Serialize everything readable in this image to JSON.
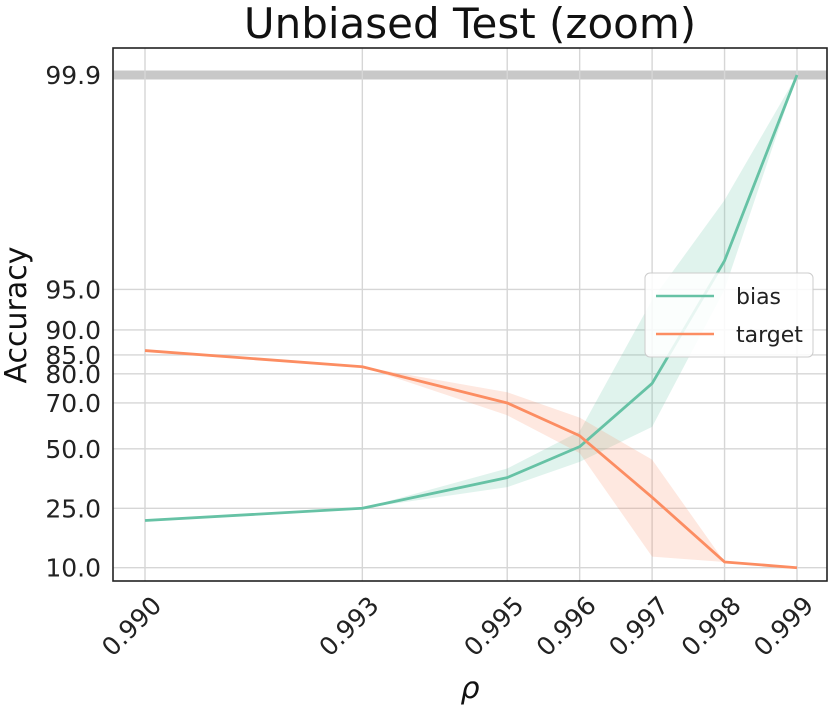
{
  "chart_data": {
    "type": "line",
    "title": "Unbiased Test (zoom)",
    "xlabel": "ρ",
    "ylabel": "Accuracy",
    "x": [
      0.99,
      0.993,
      0.995,
      0.996,
      0.997,
      0.998,
      0.999
    ],
    "x_tick_labels": [
      "0.990",
      "0.993",
      "0.995",
      "0.996",
      "0.997",
      "0.998",
      "0.999"
    ],
    "y_ticks": [
      10.0,
      25.0,
      50.0,
      70.0,
      80.0,
      85.0,
      90.0,
      95.0,
      99.9
    ],
    "y_tick_labels": [
      "10.0",
      "25.0",
      "50.0",
      "70.0",
      "80.0",
      "85.0",
      "90.0",
      "95.0",
      "99.9"
    ],
    "grid": true,
    "legend_position": "center-right",
    "series": [
      {
        "name": "bias",
        "color": "#66c2a5",
        "values": [
          21.0,
          25.0,
          37.0,
          51.0,
          77.0,
          97.0,
          99.9
        ],
        "lower": [
          21.0,
          25.0,
          33.0,
          44.0,
          60.0,
          95.0,
          99.9
        ],
        "upper": [
          21.0,
          25.0,
          41.0,
          58.0,
          94.0,
          99.0,
          99.9
        ]
      },
      {
        "name": "target",
        "color": "#fc8d62",
        "values": [
          86.0,
          82.0,
          70.0,
          56.0,
          29.0,
          11.0,
          10.0
        ],
        "lower": [
          86.0,
          82.0,
          65.0,
          48.0,
          12.0,
          11.0,
          10.0
        ],
        "upper": [
          86.0,
          82.0,
          74.0,
          64.0,
          45.0,
          11.0,
          10.0
        ]
      }
    ]
  }
}
